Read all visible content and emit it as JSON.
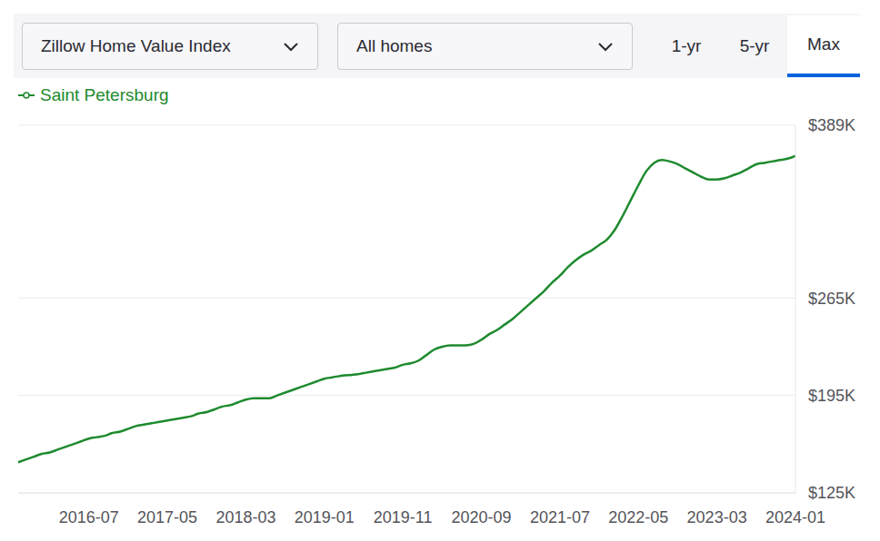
{
  "controls": {
    "dropdowns": [
      "Zillow Home Value Index",
      "All homes"
    ],
    "tabs": [
      "1-yr",
      "5-yr",
      "Max"
    ],
    "selected_tab": "Max"
  },
  "chart_data": {
    "type": "line",
    "legend": "top-left",
    "grid": true,
    "categories": [
      null,
      null,
      null,
      null,
      null,
      null,
      null,
      null,
      null,
      "2016-07",
      null,
      null,
      null,
      null,
      null,
      null,
      null,
      null,
      null,
      "2017-05",
      null,
      null,
      null,
      null,
      null,
      null,
      null,
      null,
      null,
      "2018-03",
      null,
      null,
      null,
      null,
      null,
      null,
      null,
      null,
      null,
      "2019-01",
      null,
      null,
      null,
      null,
      null,
      null,
      null,
      null,
      null,
      "2019-11",
      null,
      null,
      null,
      null,
      null,
      null,
      null,
      null,
      null,
      "2020-09",
      null,
      null,
      null,
      null,
      null,
      null,
      null,
      null,
      null,
      "2021-07",
      null,
      null,
      null,
      null,
      null,
      null,
      null,
      null,
      null,
      "2022-05",
      null,
      null,
      null,
      null,
      null,
      null,
      null,
      null,
      null,
      "2023-03",
      null,
      null,
      null,
      null,
      null,
      null,
      null,
      null,
      null,
      "2024-01"
    ],
    "series": [
      {
        "name": "Saint Petersburg",
        "color": "#1e8a2e",
        "values": [
          147,
          149,
          151,
          153,
          154,
          156,
          158,
          160,
          162,
          164,
          165,
          166,
          168,
          169,
          171,
          173,
          174,
          175,
          176,
          177,
          178,
          179,
          180,
          182,
          183,
          185,
          187,
          188,
          190,
          192,
          193,
          193,
          193,
          195,
          197,
          199,
          201,
          203,
          205,
          207,
          208,
          209,
          209.5,
          210,
          211,
          212,
          213,
          214,
          215,
          217,
          218,
          220,
          224,
          228,
          230,
          231,
          231,
          231,
          232,
          235,
          239,
          242,
          246,
          250,
          255,
          260,
          265,
          270,
          276,
          281,
          287,
          292,
          296,
          299,
          303,
          307,
          314,
          324,
          335,
          346,
          356,
          362,
          364,
          363,
          361,
          358,
          355,
          352,
          350,
          350,
          351,
          353,
          355,
          358,
          361,
          362,
          363,
          364,
          365,
          367
        ]
      }
    ],
    "ylim": [
      125,
      389
    ],
    "yticks": [
      {
        "value": 125,
        "label": "$125K"
      },
      {
        "value": 195,
        "label": "$195K"
      },
      {
        "value": 265,
        "label": "$265K"
      },
      {
        "value": 389,
        "label": "$389K"
      }
    ]
  }
}
